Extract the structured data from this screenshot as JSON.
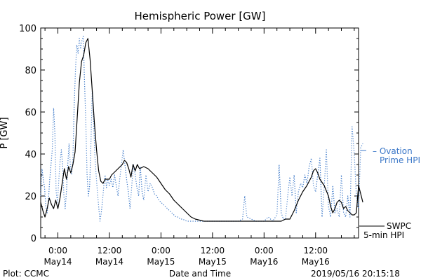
{
  "chart_data": {
    "type": "line",
    "title": "Hemispheric Power [GW]",
    "xlabel": "Date and Time",
    "ylabel": "P [GW]",
    "ylim": [
      0,
      100
    ],
    "xlim_hours": [
      -4,
      70
    ],
    "x_unit": "hours since 2019-05-14 00:00",
    "yticks": [
      0,
      20,
      40,
      60,
      80,
      100
    ],
    "xticks": [
      {
        "x": 0,
        "time": "0:00",
        "date": "May14"
      },
      {
        "x": 12,
        "time": "12:00",
        "date": "May14"
      },
      {
        "x": 24,
        "time": "0:00",
        "date": "May15"
      },
      {
        "x": 36,
        "time": "12:00",
        "date": "May15"
      },
      {
        "x": 48,
        "time": "0:00",
        "date": "May16"
      },
      {
        "x": 60,
        "time": "12:00",
        "date": "May16"
      }
    ],
    "grid": false,
    "legend_position": "right",
    "series": [
      {
        "name": "SWPC 5-min HPI",
        "legend_line1": "SWPC",
        "legend_line2": "5-min HPI",
        "color": "#000000",
        "style": "solid",
        "points": [
          [
            -4,
            17
          ],
          [
            -3.5,
            13
          ],
          [
            -3,
            10
          ],
          [
            -2.5,
            14
          ],
          [
            -2,
            19
          ],
          [
            -1.5,
            16
          ],
          [
            -1,
            14
          ],
          [
            -0.5,
            18
          ],
          [
            0,
            14
          ],
          [
            0.5,
            19
          ],
          [
            1,
            26
          ],
          [
            1.5,
            33
          ],
          [
            2,
            28
          ],
          [
            2.5,
            34
          ],
          [
            3,
            31
          ],
          [
            3.5,
            35
          ],
          [
            4,
            41
          ],
          [
            4.5,
            57
          ],
          [
            5,
            74
          ],
          [
            5.5,
            84
          ],
          [
            6,
            87
          ],
          [
            6.5,
            93
          ],
          [
            7,
            95
          ],
          [
            7.5,
            85
          ],
          [
            8,
            70
          ],
          [
            8.5,
            55
          ],
          [
            9,
            42
          ],
          [
            9.5,
            32
          ],
          [
            10,
            27
          ],
          [
            10.5,
            26
          ],
          [
            11,
            28
          ],
          [
            12,
            28
          ],
          [
            12.5,
            30
          ],
          [
            13,
            31
          ],
          [
            14,
            33
          ],
          [
            15,
            35
          ],
          [
            15.5,
            37
          ],
          [
            16,
            36
          ],
          [
            16.5,
            33
          ],
          [
            17,
            29
          ],
          [
            17.5,
            35
          ],
          [
            18,
            32
          ],
          [
            18.5,
            35
          ],
          [
            19,
            33
          ],
          [
            20,
            34
          ],
          [
            21,
            33
          ],
          [
            22,
            31
          ],
          [
            23,
            29
          ],
          [
            24,
            26
          ],
          [
            25,
            23
          ],
          [
            26,
            21
          ],
          [
            27,
            18
          ],
          [
            28,
            16
          ],
          [
            29,
            14
          ],
          [
            30,
            12
          ],
          [
            31,
            10
          ],
          [
            32,
            9
          ],
          [
            34,
            8
          ],
          [
            36,
            8
          ],
          [
            38,
            8
          ],
          [
            40,
            8
          ],
          [
            42,
            8
          ],
          [
            44,
            8
          ],
          [
            46,
            8
          ],
          [
            48,
            8
          ],
          [
            50,
            8
          ],
          [
            52,
            8
          ],
          [
            53,
            9
          ],
          [
            54,
            9
          ],
          [
            55,
            13
          ],
          [
            56,
            18
          ],
          [
            57,
            22
          ],
          [
            58,
            25
          ],
          [
            59,
            29
          ],
          [
            59.5,
            32
          ],
          [
            60,
            33
          ],
          [
            60.5,
            31
          ],
          [
            61,
            28
          ],
          [
            62,
            25
          ],
          [
            63,
            20
          ],
          [
            63.5,
            15
          ],
          [
            64,
            12
          ],
          [
            64.5,
            14
          ],
          [
            65,
            17
          ],
          [
            65.5,
            18
          ],
          [
            66,
            17
          ],
          [
            66.5,
            14
          ],
          [
            67,
            15
          ],
          [
            67.5,
            13
          ],
          [
            68,
            12
          ],
          [
            68.5,
            11
          ],
          [
            69,
            11
          ],
          [
            69.5,
            12
          ],
          [
            70,
            25
          ],
          [
            70.5,
            21
          ],
          [
            71,
            17
          ]
        ]
      },
      {
        "name": "Ovation Prime HPI",
        "legend_line1": "– Ovation",
        "legend_line2": "Prime HPI",
        "color": "#3c78c8",
        "style": "dotted",
        "points": [
          [
            -4,
            20
          ],
          [
            -3.7,
            33
          ],
          [
            -3.4,
            28
          ],
          [
            -3.1,
            24
          ],
          [
            -2.8,
            15
          ],
          [
            -2.5,
            12
          ],
          [
            -2.2,
            18
          ],
          [
            -1.9,
            28
          ],
          [
            -1.6,
            35
          ],
          [
            -1.3,
            42
          ],
          [
            -1,
            62
          ],
          [
            -0.7,
            50
          ],
          [
            -0.4,
            22
          ],
          [
            -0.1,
            17
          ],
          [
            0.2,
            27
          ],
          [
            0.5,
            36
          ],
          [
            0.8,
            42
          ],
          [
            1.1,
            35
          ],
          [
            1.4,
            20
          ],
          [
            1.7,
            14
          ],
          [
            2,
            22
          ],
          [
            2.3,
            35
          ],
          [
            2.6,
            45
          ],
          [
            2.9,
            35
          ],
          [
            3.2,
            30
          ],
          [
            3.5,
            38
          ],
          [
            3.8,
            63
          ],
          [
            4.1,
            80
          ],
          [
            4.4,
            92
          ],
          [
            4.7,
            88
          ],
          [
            5,
            95
          ],
          [
            5.3,
            90
          ],
          [
            5.6,
            94
          ],
          [
            5.9,
            96
          ],
          [
            6.2,
            75
          ],
          [
            6.5,
            55
          ],
          [
            6.8,
            30
          ],
          [
            7.1,
            20
          ],
          [
            7.4,
            25
          ],
          [
            7.7,
            45
          ],
          [
            8,
            70
          ],
          [
            8.3,
            58
          ],
          [
            8.6,
            40
          ],
          [
            8.9,
            30
          ],
          [
            9.2,
            22
          ],
          [
            9.5,
            15
          ],
          [
            9.8,
            8
          ],
          [
            10.1,
            12
          ],
          [
            10.4,
            18
          ],
          [
            10.7,
            25
          ],
          [
            11,
            30
          ],
          [
            11.3,
            24
          ],
          [
            11.6,
            28
          ],
          [
            12,
            25
          ],
          [
            12.4,
            28
          ],
          [
            12.8,
            24
          ],
          [
            13.2,
            30
          ],
          [
            13.6,
            25
          ],
          [
            14,
            20
          ],
          [
            14.4,
            28
          ],
          [
            14.8,
            35
          ],
          [
            15.2,
            42
          ],
          [
            15.6,
            35
          ],
          [
            16,
            28
          ],
          [
            16.4,
            22
          ],
          [
            16.8,
            14
          ],
          [
            17.2,
            25
          ],
          [
            17.6,
            35
          ],
          [
            18,
            30
          ],
          [
            18.4,
            24
          ],
          [
            18.8,
            20
          ],
          [
            19.2,
            34
          ],
          [
            19.6,
            22
          ],
          [
            20,
            18
          ],
          [
            20.5,
            30
          ],
          [
            21,
            22
          ],
          [
            21.5,
            26
          ],
          [
            22,
            24
          ],
          [
            22.5,
            21
          ],
          [
            23,
            20
          ],
          [
            23.5,
            18
          ],
          [
            24,
            17
          ],
          [
            24.5,
            16
          ],
          [
            25,
            15
          ],
          [
            25.5,
            14
          ],
          [
            26,
            13
          ],
          [
            26.5,
            12
          ],
          [
            27,
            11
          ],
          [
            27.5,
            10
          ],
          [
            28,
            10
          ],
          [
            28.5,
            9
          ],
          [
            29,
            9
          ],
          [
            30,
            8
          ],
          [
            31,
            8
          ],
          [
            32,
            8
          ],
          [
            34,
            8
          ],
          [
            36,
            8
          ],
          [
            38,
            8
          ],
          [
            40,
            8
          ],
          [
            42,
            8
          ],
          [
            43,
            9
          ],
          [
            43.5,
            20
          ],
          [
            44,
            10
          ],
          [
            45,
            9
          ],
          [
            46,
            8
          ],
          [
            47,
            8
          ],
          [
            48,
            8
          ],
          [
            49,
            10
          ],
          [
            50,
            8
          ],
          [
            51,
            11
          ],
          [
            51.5,
            35
          ],
          [
            52,
            12
          ],
          [
            52.5,
            9
          ],
          [
            53,
            9
          ],
          [
            53.5,
            20
          ],
          [
            54,
            29
          ],
          [
            54.5,
            20
          ],
          [
            55,
            30
          ],
          [
            55.5,
            12
          ],
          [
            56,
            22
          ],
          [
            56.5,
            26
          ],
          [
            57,
            24
          ],
          [
            57.5,
            30
          ],
          [
            58,
            26
          ],
          [
            58.5,
            34
          ],
          [
            59,
            38
          ],
          [
            59.5,
            25
          ],
          [
            60,
            22
          ],
          [
            60.5,
            30
          ],
          [
            61,
            38
          ],
          [
            61.5,
            10
          ],
          [
            62,
            24
          ],
          [
            62.5,
            42
          ],
          [
            63,
            15
          ],
          [
            63.5,
            10
          ],
          [
            64,
            25
          ],
          [
            64.5,
            12
          ],
          [
            65,
            14
          ],
          [
            65.5,
            10
          ],
          [
            66,
            30
          ],
          [
            66.5,
            12
          ],
          [
            67,
            10
          ],
          [
            67.5,
            20
          ],
          [
            68,
            10
          ],
          [
            68.5,
            53
          ],
          [
            69,
            40
          ],
          [
            69.5,
            20
          ],
          [
            70,
            14
          ],
          [
            70.5,
            43
          ],
          [
            71,
            45
          ]
        ]
      }
    ],
    "footer_left": "Plot: CCMC",
    "footer_right": "2019/05/16 20:15:18"
  }
}
